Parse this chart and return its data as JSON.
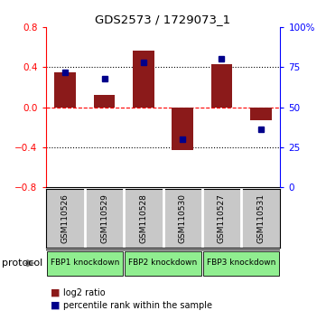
{
  "title": "GDS2573 / 1729073_1",
  "samples": [
    "GSM110526",
    "GSM110529",
    "GSM110528",
    "GSM110530",
    "GSM110527",
    "GSM110531"
  ],
  "log2_ratios": [
    0.35,
    0.12,
    0.57,
    -0.43,
    0.43,
    -0.13
  ],
  "percentile_ranks": [
    72,
    68,
    78,
    30,
    80,
    36
  ],
  "groups": [
    {
      "label": "FBP1 knockdown",
      "start": 0,
      "end": 2,
      "color": "#90EE90"
    },
    {
      "label": "FBP2 knockdown",
      "start": 2,
      "end": 4,
      "color": "#90EE90"
    },
    {
      "label": "FBP3 knockdown",
      "start": 4,
      "end": 6,
      "color": "#90EE90"
    }
  ],
  "bar_color": "#8B1A1A",
  "dot_color": "#00008B",
  "left_ylim": [
    -0.8,
    0.8
  ],
  "right_ylim": [
    0,
    100
  ],
  "left_yticks": [
    -0.8,
    -0.4,
    0,
    0.4,
    0.8
  ],
  "right_yticks": [
    0,
    25,
    50,
    75,
    100
  ],
  "right_yticklabels": [
    "0",
    "25",
    "50",
    "75",
    "100%"
  ],
  "hlines": [
    0.4,
    -0.4
  ],
  "zero_line_color": "#FF0000",
  "background_color": "#ffffff",
  "sample_box_color": "#c8c8c8",
  "bar_width": 0.55
}
